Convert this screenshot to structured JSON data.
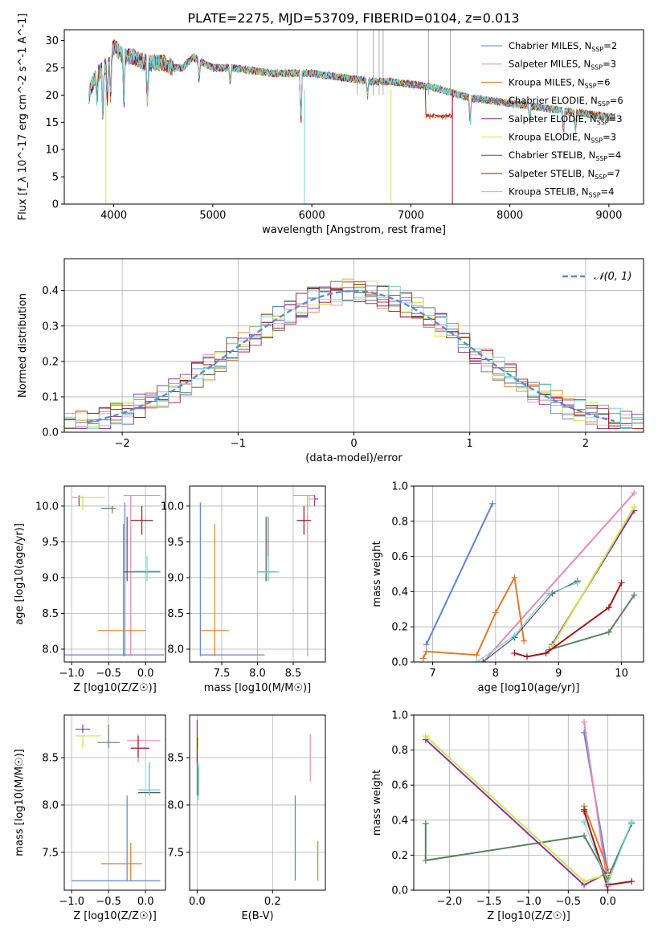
{
  "title": "PLATE=2275, MJD=53709, FIBERID=0104, z=0.013",
  "colors": {
    "chabrier_miles": "#5b84d6",
    "salpeter_miles": "#e987b8",
    "kroupa_miles": "#e07b28",
    "chabrier_elodie": "#5c8062",
    "salpeter_elodie": "#8b2fa8",
    "kroupa_elodie": "#c9e84a",
    "chabrier_stelib": "#555555",
    "salpeter_stelib": "#a3141c",
    "kroupa_stelib": "#6fd3d8"
  },
  "chart_data": [
    {
      "id": "spectrum",
      "type": "line",
      "title": "PLATE=2275, MJD=53709, FIBERID=0104, z=0.013",
      "xlabel": "wavelength [Angstrom, rest frame]",
      "ylabel": "Flux [f_λ 10^-17 erg cm^-2 s^-1 A^-1]",
      "xlim": [
        3500,
        9350
      ],
      "ylim": [
        0,
        32
      ],
      "xticks": [
        4000,
        5000,
        6000,
        7000,
        8000,
        9000
      ],
      "yticks": [
        0,
        5,
        10,
        15,
        20,
        25,
        30
      ],
      "grid": false,
      "legend_position": "top-right",
      "legend": [
        "Chabrier MILES, N_SSP=2",
        "Salpeter MILES, N_SSP=3",
        "Kroupa MILES, N_SSP=6",
        "Chabrier ELODIE, N_SSP=6",
        "Salpeter ELODIE, N_SSP=3",
        "Kroupa ELODIE, N_SSP=3",
        "Chabrier STELIB, N_SSP=4",
        "Salpeter STELIB, N_SSP=7",
        "Kroupa STELIB, N_SSP=4"
      ],
      "series": [
        {
          "name": "Kroupa STELIB, N_SSP=4",
          "x": [
            3750,
            3800,
            3850,
            3900,
            3950,
            4000,
            4050,
            4100,
            4200,
            4300,
            4400,
            4500,
            4600,
            4700,
            4800,
            4900,
            5000,
            5200,
            5400,
            5600,
            5800,
            6000,
            6200,
            6400,
            6600,
            6800,
            7000,
            7200,
            7400,
            7600,
            7800,
            8000,
            8200,
            8400,
            8600,
            8800,
            9000,
            9050
          ],
          "y": [
            20,
            23,
            24,
            25,
            26,
            29,
            28,
            27,
            27,
            26,
            26,
            26,
            25,
            25,
            27,
            26,
            25,
            25,
            24.5,
            24,
            24,
            24,
            23.5,
            23,
            22.5,
            22.5,
            22,
            21.5,
            20.5,
            19.5,
            19,
            18.5,
            18,
            17.5,
            17,
            16.5,
            16,
            16
          ]
        }
      ]
    },
    {
      "id": "residuals",
      "type": "line",
      "xlabel": "(data-model)/error",
      "ylabel": "Normed distribution",
      "xlim": [
        -2.5,
        2.5
      ],
      "ylim": [
        0,
        0.49
      ],
      "xticks": [
        -2,
        -1,
        0,
        1,
        2
      ],
      "yticks": [
        0.0,
        0.1,
        0.2,
        0.3,
        0.4
      ],
      "grid": true,
      "legend_position": "top-right",
      "legend": [
        "𝒩(0, 1)"
      ],
      "series": [
        {
          "name": "𝒩(0, 1)",
          "x": [
            -2.4,
            -2.2,
            -2.0,
            -1.8,
            -1.6,
            -1.4,
            -1.2,
            -1.0,
            -0.8,
            -0.6,
            -0.4,
            -0.2,
            0.0,
            0.2,
            0.4,
            0.6,
            0.8,
            1.0,
            1.2,
            1.4,
            1.6,
            1.8,
            2.0,
            2.2,
            2.4
          ],
          "y": [
            0.022,
            0.035,
            0.054,
            0.079,
            0.111,
            0.15,
            0.194,
            0.242,
            0.29,
            0.333,
            0.368,
            0.391,
            0.399,
            0.391,
            0.368,
            0.333,
            0.29,
            0.242,
            0.194,
            0.15,
            0.111,
            0.079,
            0.054,
            0.035,
            0.022
          ]
        }
      ]
    },
    {
      "id": "age_vs_Z",
      "type": "scatter",
      "xlabel": "Z [log10(Z/Z☉)]",
      "ylabel": "age [log10(age/yr)]",
      "xlim": [
        -1.1,
        0.27
      ],
      "ylim": [
        7.82,
        10.28
      ],
      "xticks": [
        -1.0,
        -0.5,
        0.0
      ],
      "yticks": [
        8.0,
        8.5,
        9.0,
        9.5,
        10.0
      ],
      "grid": true
    },
    {
      "id": "age_vs_mass",
      "type": "scatter",
      "xlabel": "mass [log10(M/M☉)]",
      "xlim": [
        7.05,
        8.95
      ],
      "ylim": [
        7.82,
        10.28
      ],
      "xticks": [
        7.5,
        8.0,
        8.5
      ],
      "yticks": [
        8.0,
        8.5,
        9.0,
        9.5,
        10.0
      ],
      "grid": true
    },
    {
      "id": "massweight_vs_age",
      "type": "line",
      "xlabel": "age [log10(age/yr)]",
      "ylabel": "mass weight",
      "xlim": [
        6.7,
        10.35
      ],
      "ylim": [
        0.0,
        1.0
      ],
      "xticks": [
        7,
        8,
        9,
        10
      ],
      "yticks": [
        0.0,
        0.2,
        0.4,
        0.6,
        0.8,
        1.0
      ],
      "grid": true,
      "series": [
        {
          "name": "Chabrier MILES",
          "x": [
            6.9,
            7.95
          ],
          "y": [
            0.1,
            0.9
          ]
        },
        {
          "name": "Salpeter MILES",
          "x": [
            7.8,
            10.2
          ],
          "y": [
            0.0,
            0.96
          ]
        },
        {
          "name": "Kroupa MILES",
          "x": [
            6.85,
            6.9,
            7.7,
            8.0,
            8.3,
            8.45
          ],
          "y": [
            0.02,
            0.06,
            0.04,
            0.28,
            0.48,
            0.12
          ]
        },
        {
          "name": "Chabrier ELODIE",
          "x": [
            8.85,
            9.8,
            10.2
          ],
          "y": [
            0.07,
            0.17,
            0.38
          ]
        },
        {
          "name": "Salpeter ELODIE",
          "x": [
            8.9,
            10.2
          ],
          "y": [
            0.1,
            0.86
          ]
        },
        {
          "name": "Kroupa ELODIE",
          "x": [
            8.9,
            10.2
          ],
          "y": [
            0.09,
            0.88
          ]
        },
        {
          "name": "Chabrier STELIB",
          "x": [
            7.8,
            8.3,
            8.9,
            9.3
          ],
          "y": [
            0.0,
            0.14,
            0.39,
            0.46
          ]
        },
        {
          "name": "Salpeter STELIB",
          "x": [
            8.3,
            8.5,
            8.8,
            9.8,
            10.0
          ],
          "y": [
            0.05,
            0.03,
            0.05,
            0.31,
            0.45
          ]
        },
        {
          "name": "Kroupa STELIB",
          "x": [
            7.7,
            8.3,
            8.85,
            9.3
          ],
          "y": [
            0.0,
            0.15,
            0.39,
            0.45
          ]
        }
      ]
    },
    {
      "id": "mass_vs_Z",
      "type": "scatter",
      "xlabel": "Z [log10(Z/Z☉)]",
      "ylabel": "mass [log10(M/M☉)]",
      "xlim": [
        -1.1,
        0.27
      ],
      "ylim": [
        7.1,
        8.95
      ],
      "xticks": [
        -1.0,
        -0.5,
        0.0
      ],
      "yticks": [
        7.5,
        8.0,
        8.5
      ],
      "grid": true
    },
    {
      "id": "mass_vs_ebv",
      "type": "scatter",
      "xlabel": "E(B-V)",
      "xlim": [
        -0.02,
        0.34
      ],
      "ylim": [
        7.1,
        8.95
      ],
      "xticks": [
        0.0,
        0.2
      ],
      "yticks": [
        7.5,
        8.0,
        8.5
      ],
      "grid": true
    },
    {
      "id": "massweight_vs_Z",
      "type": "line",
      "xlabel": "Z [log10(Z/Z☉)]",
      "ylabel": "mass weight",
      "xlim": [
        -2.45,
        0.45
      ],
      "ylim": [
        0.0,
        1.0
      ],
      "xticks": [
        -2.0,
        -1.5,
        -1.0,
        -0.5,
        0.0
      ],
      "yticks": [
        0.0,
        0.2,
        0.4,
        0.6,
        0.8,
        1.0
      ],
      "grid": true,
      "series": [
        {
          "name": "Chabrier MILES",
          "x": [
            -0.3,
            0.0
          ],
          "y": [
            0.9,
            0.1
          ]
        },
        {
          "name": "Salpeter MILES",
          "x": [
            -0.3,
            0.0
          ],
          "y": [
            0.96,
            0.02
          ]
        },
        {
          "name": "Kroupa MILES",
          "x": [
            -0.3,
            0.0,
            0.0
          ],
          "y": [
            0.48,
            0.12,
            0.04
          ]
        },
        {
          "name": "Chabrier ELODIE",
          "x": [
            -2.3,
            -2.3,
            -0.3,
            0.0,
            0.3
          ],
          "y": [
            0.38,
            0.17,
            0.31,
            0.07,
            0.38
          ]
        },
        {
          "name": "Salpeter ELODIE",
          "x": [
            -2.3,
            -0.3,
            0.0
          ],
          "y": [
            0.86,
            0.03,
            0.1
          ]
        },
        {
          "name": "Kroupa ELODIE",
          "x": [
            -2.3,
            -0.3,
            0.0
          ],
          "y": [
            0.88,
            0.05,
            0.09
          ]
        },
        {
          "name": "Chabrier STELIB",
          "x": [
            -0.3,
            0.0
          ],
          "y": [
            0.46,
            0.0
          ]
        },
        {
          "name": "Salpeter STELIB",
          "x": [
            -0.3,
            0.0,
            0.3
          ],
          "y": [
            0.45,
            0.03,
            0.05
          ]
        },
        {
          "name": "Kroupa STELIB",
          "x": [
            -0.3,
            0.0,
            0.3
          ],
          "y": [
            0.39,
            0.04,
            0.39
          ]
        }
      ]
    }
  ]
}
